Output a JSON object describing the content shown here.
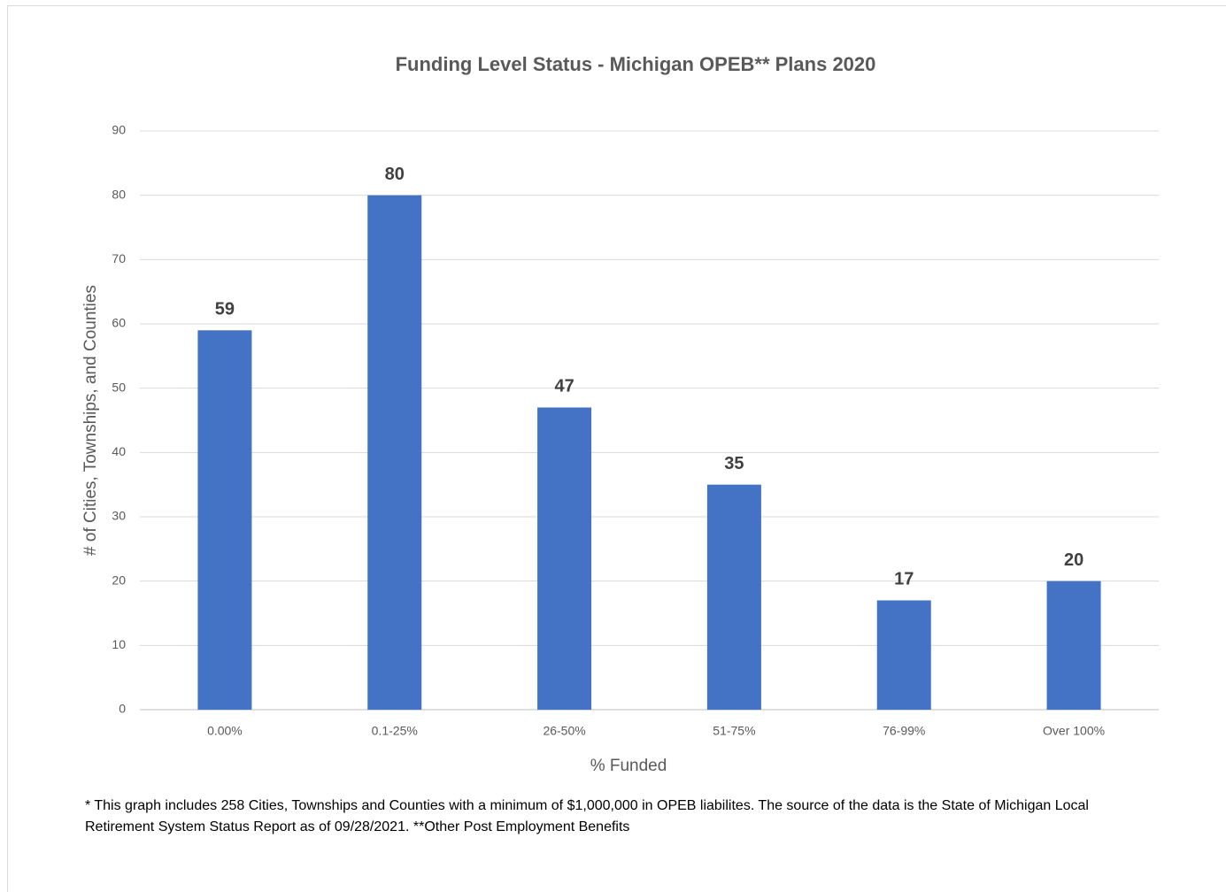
{
  "chart_data": {
    "type": "bar",
    "title": "Funding Level Status - Michigan OPEB** Plans 2020",
    "x_label": "% Funded",
    "y_label": "# of Cities, Townships, and Counties",
    "categories": [
      "0.00%",
      "0.1-25%",
      "26-50%",
      "51-75%",
      "76-99%",
      "Over 100%"
    ],
    "values": [
      59,
      80,
      47,
      35,
      17,
      20
    ],
    "color": "#4472c4",
    "ylim": [
      0,
      90
    ],
    "yticks": [
      0,
      10,
      20,
      30,
      40,
      50,
      60,
      70,
      80,
      90
    ],
    "grid": true,
    "note": "*  This graph includes 258 Cities, Townships and Counties with a minimum of $1,000,000 in OPEB liabilites. The source of the data is the State of Michigan Local Retirement System Status Report  as of 09/28/2021. **Other Post Employment Benefits"
  }
}
